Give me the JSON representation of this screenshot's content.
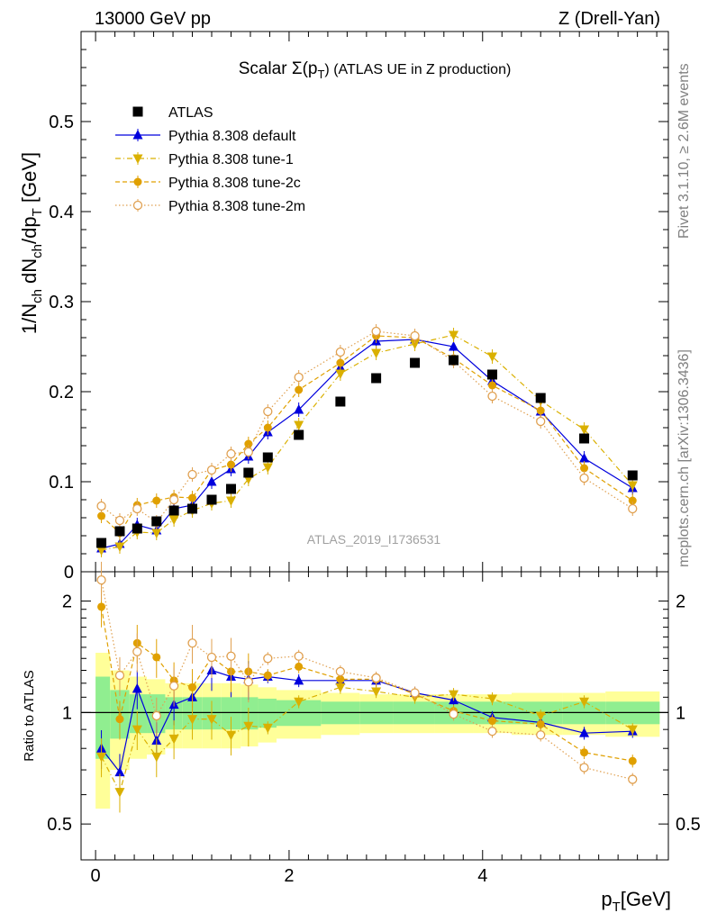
{
  "header": {
    "left": "13000 GeV pp",
    "right": "Z (Drell-Yan)"
  },
  "side_labels": {
    "rivet": "Rivet 3.1.10, ≥ 2.6M events",
    "mcplots": "mcplots.cern.ch [arXiv:1306.3436]"
  },
  "main_plot": {
    "title_prefix": "Scalar Σ(p",
    "title_sub": "T",
    "title_suffix": ") (ATLAS UE in Z production)",
    "analysis_id": "ATLAS_2019_I1736531"
  },
  "chart_data": {
    "type": "scatter",
    "x": [
      0.06,
      0.25,
      0.43,
      0.63,
      0.81,
      1.0,
      1.2,
      1.4,
      1.58,
      1.78,
      2.1,
      2.53,
      2.9,
      3.3,
      3.7,
      4.1,
      4.6,
      5.05,
      5.55
    ],
    "xlim": [
      -0.15,
      5.92
    ],
    "xticks": [
      0,
      2,
      4
    ],
    "xlabel": "p",
    "xlabel_sub": "T",
    "xlabel_unit": "[GeV]",
    "ylabel": "1/N",
    "ylabel_parts": [
      "1/N",
      "ch",
      " dN",
      "ch",
      "/dp",
      "T",
      " [GeV]"
    ],
    "ylim": [
      0,
      0.6
    ],
    "yticks": [
      0,
      0.1,
      0.2,
      0.3,
      0.4,
      0.5
    ],
    "yticklabels": [
      "0",
      "0.1",
      "0.2",
      "0.3",
      "0.4",
      "0.5"
    ],
    "ratio": {
      "ylabel": "Ratio to ATLAS",
      "ylim": [
        0.4,
        2.4
      ],
      "yticks": [
        0.5,
        1,
        2
      ],
      "yticklabels": [
        "0.5",
        "1",
        "2"
      ],
      "band_edges": [
        0,
        0.15,
        0.35,
        0.53,
        0.72,
        0.9,
        1.1,
        1.3,
        1.5,
        1.68,
        1.87,
        2.33,
        2.73,
        3.08,
        3.5,
        3.9,
        4.3,
        4.83,
        5.27,
        5.83
      ],
      "band_inner": [
        0.25,
        0.15,
        0.12,
        0.12,
        0.1,
        0.1,
        0.1,
        0.1,
        0.1,
        0.09,
        0.08,
        0.07,
        0.07,
        0.07,
        0.07,
        0.07,
        0.07,
        0.07,
        0.07
      ],
      "band_outer": [
        0.45,
        0.3,
        0.25,
        0.23,
        0.2,
        0.2,
        0.2,
        0.2,
        0.19,
        0.17,
        0.15,
        0.13,
        0.12,
        0.12,
        0.12,
        0.12,
        0.13,
        0.13,
        0.14
      ]
    },
    "series": [
      {
        "name": "ATLAS",
        "color": "#000000",
        "marker": "square",
        "values": [
          0.032,
          0.045,
          0.048,
          0.056,
          0.068,
          0.07,
          0.08,
          0.092,
          0.11,
          0.127,
          0.152,
          0.189,
          0.215,
          0.232,
          0.235,
          0.219,
          0.193,
          0.148,
          0.107
        ]
      },
      {
        "name": "Pythia 8.308 default",
        "color": "#0000dd",
        "marker": "triangle-up",
        "line": "solid",
        "values": [
          0.026,
          0.031,
          0.052,
          0.046,
          0.07,
          0.074,
          0.1,
          0.114,
          0.128,
          0.155,
          0.18,
          0.227,
          0.256,
          0.258,
          0.25,
          0.212,
          0.178,
          0.126,
          0.093
        ],
        "ratio": [
          0.8,
          0.69,
          1.16,
          0.84,
          1.05,
          1.1,
          1.3,
          1.25,
          1.23,
          1.25,
          1.22,
          1.22,
          1.22,
          1.13,
          1.08,
          0.97,
          0.94,
          0.88,
          0.89
        ]
      },
      {
        "name": "Pythia 8.308 tune-1",
        "color": "#dab000",
        "marker": "triangle-down",
        "line": "dashdot",
        "values": [
          0.024,
          0.028,
          0.044,
          0.043,
          0.058,
          0.068,
          0.076,
          0.079,
          0.103,
          0.116,
          0.163,
          0.22,
          0.243,
          0.253,
          0.263,
          0.239,
          0.19,
          0.158,
          0.096
        ],
        "ratio": [
          0.76,
          0.61,
          0.9,
          0.76,
          0.85,
          0.96,
          0.96,
          0.87,
          0.92,
          0.91,
          1.07,
          1.17,
          1.14,
          1.1,
          1.12,
          1.09,
          0.98,
          1.07,
          0.9
        ]
      },
      {
        "name": "Pythia 8.308 tune-2c",
        "color": "#e0a000",
        "marker": "circle",
        "line": "dashed",
        "values": [
          0.062,
          0.043,
          0.074,
          0.079,
          0.083,
          0.082,
          0.113,
          0.119,
          0.142,
          0.16,
          0.202,
          0.232,
          0.262,
          0.26,
          0.237,
          0.207,
          0.179,
          0.115,
          0.079
        ],
        "ratio": [
          1.93,
          0.96,
          1.54,
          1.41,
          1.22,
          1.17,
          1.41,
          1.29,
          1.29,
          1.26,
          1.33,
          1.23,
          1.23,
          1.12,
          1.01,
          0.95,
          0.93,
          0.78,
          0.74
        ]
      },
      {
        "name": "Pythia 8.308 tune-2m",
        "color": "#e0a050",
        "marker": "circle-open",
        "line": "dotted",
        "values": [
          0.073,
          0.057,
          0.07,
          0.055,
          0.08,
          0.108,
          0.113,
          0.131,
          0.133,
          0.178,
          0.216,
          0.244,
          0.267,
          0.262,
          0.234,
          0.195,
          0.167,
          0.104,
          0.07
        ],
        "ratio": [
          2.28,
          1.26,
          1.46,
          0.98,
          1.18,
          1.54,
          1.41,
          1.42,
          1.21,
          1.4,
          1.42,
          1.29,
          1.24,
          1.13,
          0.99,
          0.89,
          0.87,
          0.71,
          0.66
        ]
      }
    ]
  }
}
